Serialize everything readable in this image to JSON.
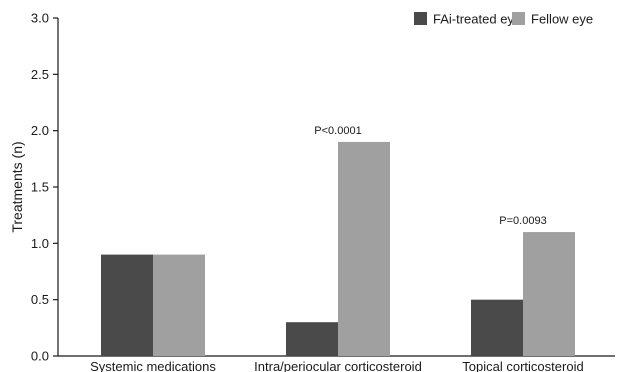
{
  "chart_data": {
    "type": "bar",
    "categories": [
      "Systemic medications",
      "Intra/periocular corticosteroid",
      "Topical corticosteroid"
    ],
    "series": [
      {
        "name": "FAi-treated eye",
        "values": [
          0.9,
          0.3,
          0.5
        ],
        "color": "#4a4a4a"
      },
      {
        "name": "Fellow eye",
        "values": [
          0.9,
          1.9,
          1.1
        ],
        "color": "#a0a0a0"
      }
    ],
    "ylabel": "Treatments (n)",
    "ylim": [
      0,
      3.0
    ],
    "yticks": [
      "0.0",
      "0.5",
      "1.0",
      "1.5",
      "2.0",
      "2.5",
      "3.0"
    ],
    "annotations": [
      {
        "category_index": 1,
        "text": "P<0.0001"
      },
      {
        "category_index": 2,
        "text": "P=0.0093"
      }
    ],
    "legend_position": "top-right",
    "grid": false
  }
}
